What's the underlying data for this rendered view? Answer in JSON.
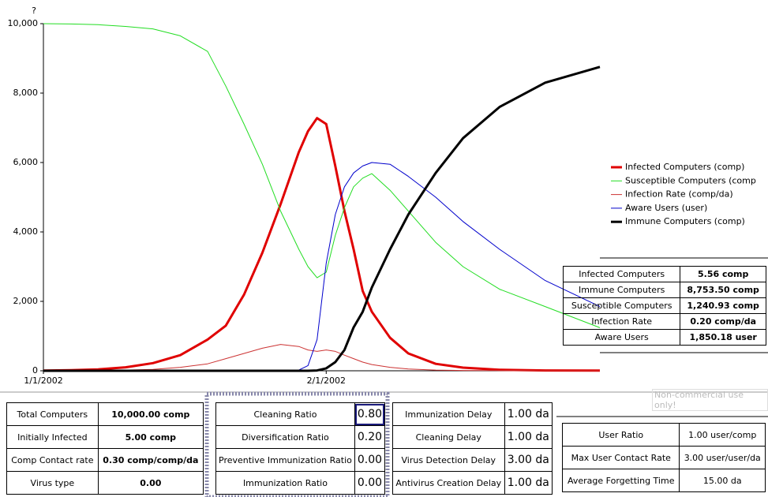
{
  "chart_data": {
    "type": "line",
    "y_label": "?",
    "x": [
      0,
      3,
      6,
      9,
      12,
      15,
      18,
      20,
      22,
      24,
      26,
      28,
      29,
      30,
      31,
      32,
      33,
      34,
      35,
      36,
      38,
      40,
      43,
      46,
      50,
      55,
      61
    ],
    "xlim": [
      0,
      61
    ],
    "xticks": [
      {
        "value": 0,
        "label": "1/1/2002"
      },
      {
        "value": 31,
        "label": "2/1/2002"
      }
    ],
    "ylim": [
      0,
      10000
    ],
    "yticks": [
      0,
      {
        "value": 2000,
        "label": "2,000"
      },
      {
        "value": 4000,
        "label": "4,000"
      },
      {
        "value": 6000,
        "label": "6,000"
      },
      {
        "value": 8000,
        "label": "8,000"
      },
      {
        "value": 10000,
        "label": "10,000"
      }
    ],
    "legend": "right",
    "series": [
      {
        "name": "Infected Computers (comp)",
        "color": "#e00000",
        "line_width": 3,
        "values": [
          5,
          15,
          40,
          100,
          220,
          450,
          900,
          1300,
          2200,
          3400,
          4800,
          6300,
          6900,
          7280,
          7110,
          5900,
          4600,
          3500,
          2300,
          1700,
          950,
          500,
          200,
          90,
          30,
          10,
          6
        ]
      },
      {
        "name": "Susceptible Computers (comp",
        "color": "#22dd22",
        "line_width": 1,
        "values": [
          10000,
          9990,
          9970,
          9920,
          9850,
          9650,
          9200,
          8200,
          7100,
          5950,
          4600,
          3500,
          3000,
          2680,
          2840,
          3900,
          4700,
          5300,
          5550,
          5680,
          5200,
          4600,
          3700,
          3000,
          2350,
          1850,
          1241
        ]
      },
      {
        "name": "Infection Rate (comp/da)",
        "color": "#cc3333",
        "line_width": 1,
        "values": [
          0,
          5,
          10,
          20,
          40,
          100,
          200,
          350,
          500,
          650,
          760,
          700,
          600,
          560,
          600,
          560,
          450,
          350,
          250,
          180,
          100,
          50,
          20,
          10,
          5,
          2,
          0.2
        ]
      },
      {
        "name": "Aware Users (user)",
        "color": "#0000cc",
        "line_width": 1,
        "values": [
          0,
          0,
          0,
          0,
          0,
          0,
          0,
          0,
          0,
          0,
          0,
          20,
          150,
          900,
          3100,
          4500,
          5300,
          5700,
          5900,
          6000,
          5950,
          5600,
          5000,
          4300,
          3500,
          2600,
          1850
        ]
      },
      {
        "name": "Immune Computers (comp)",
        "color": "#000000",
        "line_width": 3,
        "values": [
          0,
          0,
          0,
          0,
          0,
          0,
          0,
          0,
          0,
          0,
          0,
          0,
          0,
          10,
          70,
          250,
          600,
          1250,
          1700,
          2400,
          3500,
          4500,
          5700,
          6700,
          7600,
          8300,
          8753.5
        ]
      }
    ]
  },
  "status_table": {
    "rows": [
      [
        "Infected Computers",
        "5.56 comp"
      ],
      [
        "Immune Computers",
        "8,753.50 comp"
      ],
      [
        "Susceptible Computers",
        "1,240.93 comp"
      ],
      [
        "Infection Rate",
        "0.20 comp/da"
      ],
      [
        "Aware Users",
        "1,850.18 user"
      ]
    ]
  },
  "watermark": "Non-commercial use only!",
  "input_table_1": {
    "rows": [
      [
        "Total Computers",
        "10,000.00 comp"
      ],
      [
        "Initially Infected",
        "5.00 comp"
      ],
      [
        "Comp Contact rate",
        "0.30 comp/comp/da"
      ],
      [
        "Virus type",
        "0.00"
      ]
    ]
  },
  "input_table_2": {
    "rows": [
      [
        "Cleaning Ratio",
        "0.80"
      ],
      [
        "Diversification Ratio",
        "0.20"
      ],
      [
        "Preventive Immunization Ratio",
        "0.00"
      ],
      [
        "Immunization Ratio",
        "0.00"
      ]
    ]
  },
  "input_table_3": {
    "rows": [
      [
        "Immunization Delay",
        "1.00 da"
      ],
      [
        "Cleaning Delay",
        "1.00 da"
      ],
      [
        "Virus Detection Delay",
        "3.00 da"
      ],
      [
        "Antivirus Creation Delay",
        "1.00 da"
      ]
    ]
  },
  "input_table_4": {
    "rows": [
      [
        "User Ratio",
        "1.00 user/comp"
      ],
      [
        "Max User Contact Rate",
        "3.00 user/user/da"
      ],
      [
        "Average Forgetting Time",
        "15.00 da"
      ]
    ]
  }
}
